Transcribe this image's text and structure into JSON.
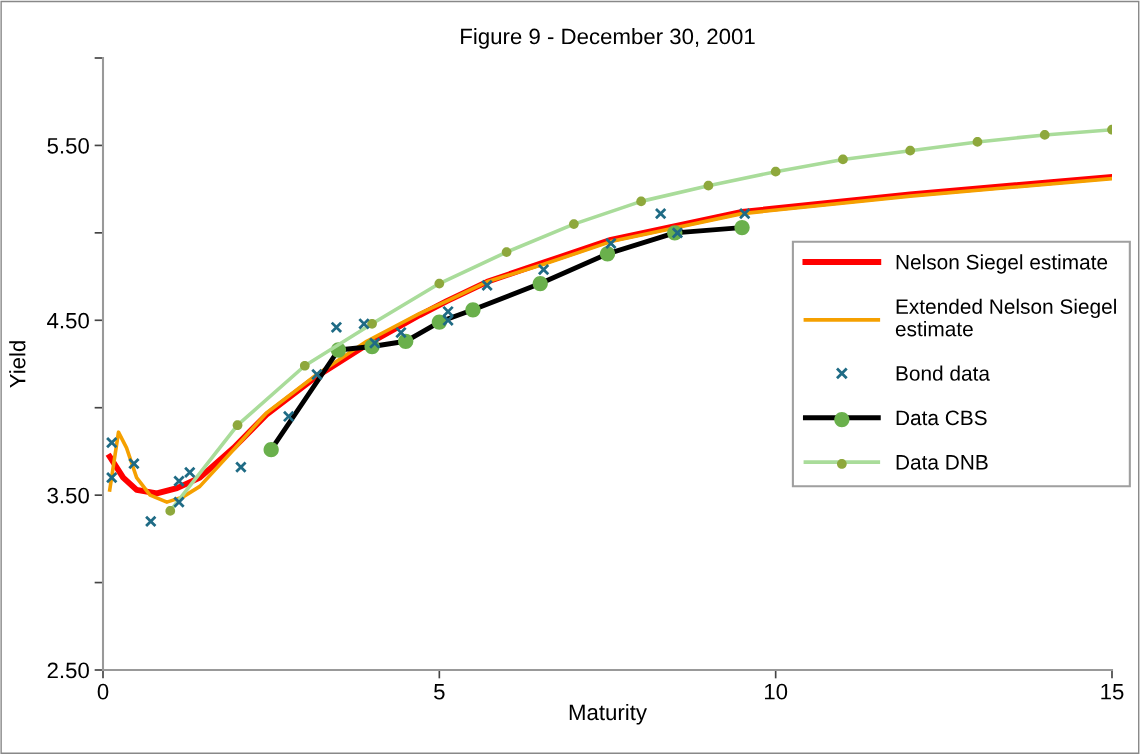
{
  "chart_data": {
    "type": "line",
    "title": "Figure 9 - December 30, 2001",
    "xlabel": "Maturity",
    "ylabel": "Yield",
    "xlim": [
      0,
      15
    ],
    "xticks": [
      0,
      5,
      10,
      15
    ],
    "ylim": [
      2.5,
      6.0
    ],
    "yticks": [
      {
        "value": 2.5,
        "label": "2.50"
      },
      {
        "value": 3.0,
        "label": null
      },
      {
        "value": 3.5,
        "label": "3.50"
      },
      {
        "value": 4.0,
        "label": null
      },
      {
        "value": 4.5,
        "label": "4.50"
      },
      {
        "value": 5.0,
        "label": null
      },
      {
        "value": 5.5,
        "label": "5.50"
      },
      {
        "value": 6.0,
        "label": null
      }
    ],
    "grid": false,
    "legend": "right",
    "series": [
      {
        "name": "Nelson Siegel estimate",
        "color": "#ff0000",
        "marker": "none",
        "x": [
          0.1,
          0.3,
          0.5,
          0.8,
          1.1,
          1.44,
          1.94,
          2.43,
          3.18,
          3.92,
          4.71,
          5.11,
          5.71,
          6.55,
          7.55,
          9.5,
          12,
          15
        ],
        "values": [
          3.72,
          3.6,
          3.53,
          3.51,
          3.54,
          3.6,
          3.77,
          3.96,
          4.18,
          4.36,
          4.53,
          4.61,
          4.72,
          4.83,
          4.96,
          5.12,
          5.22,
          5.32
        ]
      },
      {
        "name": "Extended Nelson Siegel estimate",
        "color": "#f5a000",
        "marker": "none",
        "x": [
          0.1,
          0.23,
          0.35,
          0.5,
          0.7,
          0.95,
          1.19,
          1.44,
          1.94,
          2.43,
          3.18,
          3.92,
          4.71,
          5.11,
          5.71,
          6.55,
          7.55,
          9.5,
          12,
          15
        ],
        "values": [
          3.53,
          3.86,
          3.77,
          3.6,
          3.5,
          3.46,
          3.49,
          3.55,
          3.76,
          3.97,
          4.19,
          4.38,
          4.54,
          4.61,
          4.72,
          4.82,
          4.95,
          5.11,
          5.21,
          5.31
        ]
      },
      {
        "name": "Bond data",
        "type": "scatter",
        "color": "#1f6b85",
        "marker": "cross",
        "x": [
          0.13,
          0.13,
          0.46,
          0.71,
          1.13,
          1.13,
          1.29,
          2.05,
          2.76,
          3.18,
          3.47,
          3.88,
          4.04,
          4.43,
          5.13,
          5.13,
          5.71,
          6.55,
          7.55,
          8.29,
          8.54,
          9.54
        ],
        "values": [
          3.8,
          3.6,
          3.68,
          3.35,
          3.58,
          3.46,
          3.63,
          3.66,
          3.95,
          4.19,
          4.46,
          4.48,
          4.37,
          4.43,
          4.55,
          4.5,
          4.7,
          4.79,
          4.94,
          5.11,
          5.0,
          5.11
        ]
      },
      {
        "name": "Data CBS",
        "color": "#000000",
        "colors": [
          "#6ab04c",
          "#6ab04c",
          "#6ab04c",
          "#6ab04c",
          "#6ab04c",
          "#6ab04c",
          "#6ab04c",
          "#6ab04c",
          "#6ab04c",
          "#6ab04c"
        ],
        "marker": "circle",
        "x": [
          2.5,
          3.5,
          4,
          4.5,
          5,
          5.5,
          6.5,
          7.5,
          8.5,
          9.5
        ],
        "values": [
          3.76,
          4.33,
          4.35,
          4.38,
          4.49,
          4.56,
          4.71,
          4.88,
          5.0,
          5.03
        ]
      },
      {
        "name": "Data DNB",
        "color": "#a9dc9a",
        "colors": [
          "#8ea83c",
          "#8ea83c",
          "#8ea83c",
          "#8ea83c",
          "#8ea83c",
          "#8ea83c",
          "#8ea83c",
          "#8ea83c",
          "#8ea83c",
          "#8ea83c",
          "#8ea83c",
          "#8ea83c",
          "#8ea83c",
          "#8ea83c",
          "#8ea83c"
        ],
        "marker": "circle",
        "x": [
          1,
          2,
          3,
          4,
          5,
          6,
          7,
          8,
          9,
          10,
          11,
          12,
          13,
          14,
          15
        ],
        "values": [
          3.41,
          3.9,
          4.24,
          4.48,
          4.71,
          4.89,
          5.05,
          5.18,
          5.27,
          5.35,
          5.42,
          5.47,
          5.52,
          5.56,
          5.59
        ]
      }
    ]
  }
}
